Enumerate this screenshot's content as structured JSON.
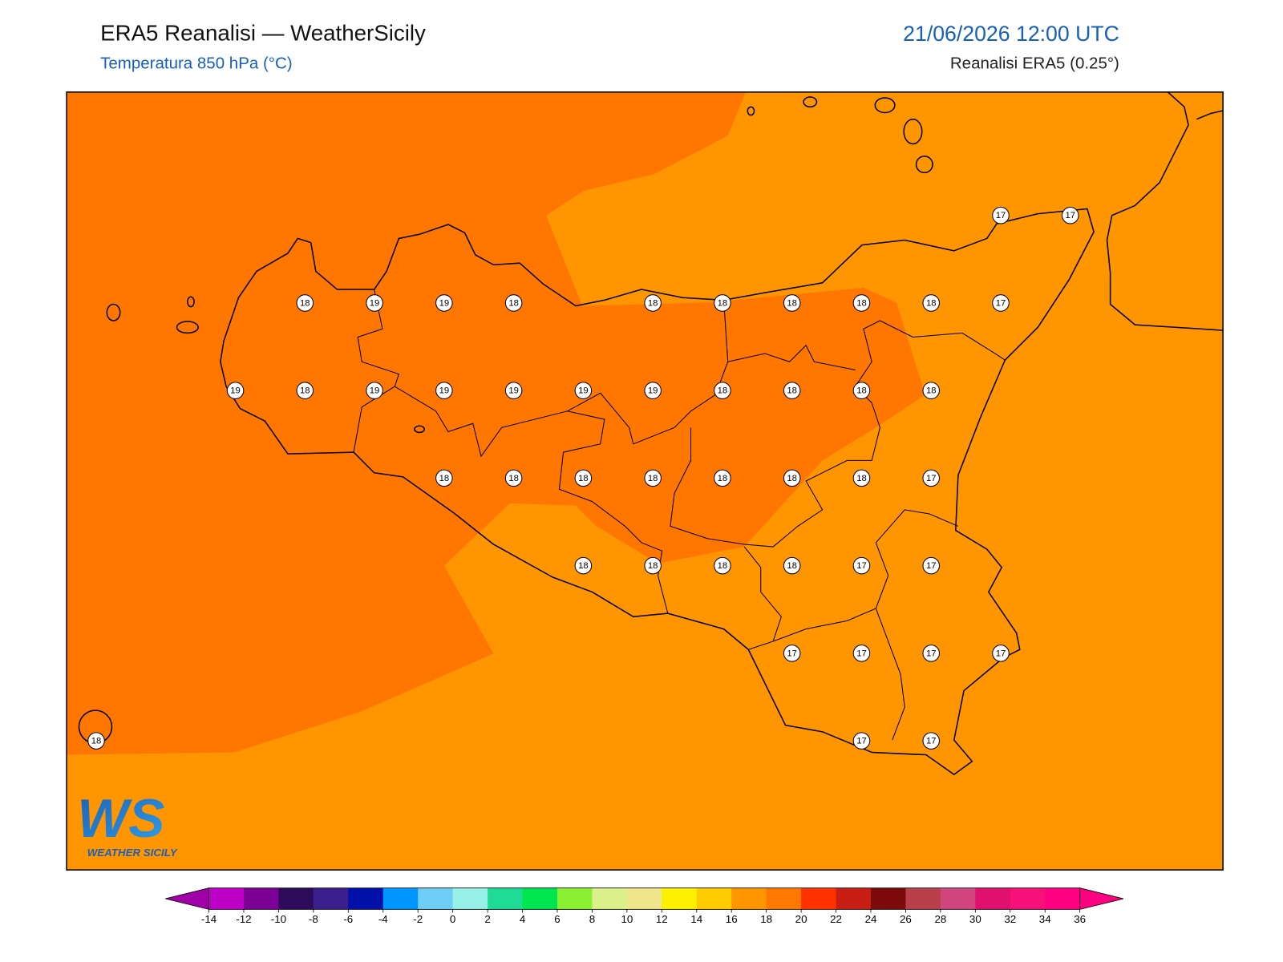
{
  "header": {
    "title": "ERA5 Reanalisi — WeatherSicily",
    "subtitle": "Temperatura 850 hPa (°C)",
    "datetime": "21/06/2026 12:00 UTC",
    "source": "Reanalisi ERA5 (0.25°)"
  },
  "map": {
    "station_grid": [
      [
        null,
        null,
        null,
        null,
        null,
        null,
        null,
        null,
        null,
        null,
        null,
        null,
        null,
        17,
        17
      ],
      [
        null,
        null,
        null,
        18,
        19,
        19,
        18,
        null,
        18,
        18,
        18,
        18,
        18,
        17,
        null
      ],
      [
        null,
        null,
        19,
        18,
        19,
        19,
        19,
        19,
        19,
        18,
        18,
        18,
        18,
        null,
        null
      ],
      [
        null,
        null,
        null,
        null,
        null,
        18,
        18,
        18,
        18,
        18,
        18,
        18,
        17,
        null,
        null
      ],
      [
        null,
        null,
        null,
        null,
        null,
        null,
        null,
        18,
        18,
        18,
        18,
        17,
        17,
        null,
        null
      ],
      [
        null,
        null,
        null,
        null,
        null,
        null,
        null,
        null,
        null,
        null,
        17,
        17,
        17,
        17,
        null
      ],
      [
        18,
        null,
        null,
        null,
        null,
        null,
        null,
        null,
        null,
        null,
        null,
        17,
        17,
        null,
        null
      ]
    ],
    "logo": {
      "mark": "WS",
      "name": "WEATHER SICILY"
    }
  },
  "colorbar": {
    "ticks": [
      -14,
      -12,
      -10,
      -8,
      -6,
      -4,
      -2,
      0,
      2,
      4,
      6,
      8,
      10,
      12,
      14,
      16,
      18,
      20,
      22,
      24,
      26,
      28,
      30,
      32,
      34,
      36
    ],
    "under_color": "#a000a8",
    "over_color": "#ff0080",
    "colors": [
      "#bf00c8",
      "#7d0096",
      "#2d0a5a",
      "#3a1e8c",
      "#0010a8",
      "#0096ff",
      "#6ecdf5",
      "#96f0e6",
      "#1edc96",
      "#00e650",
      "#8cf032",
      "#dcf08c",
      "#f0e68c",
      "#fff000",
      "#ffcc00",
      "#ff9600",
      "#ff7800",
      "#ff3200",
      "#c81e14",
      "#7d0a0a",
      "#b9404a",
      "#d0457e",
      "#e0106e",
      "#f5107a",
      "#ff0080"
    ]
  }
}
